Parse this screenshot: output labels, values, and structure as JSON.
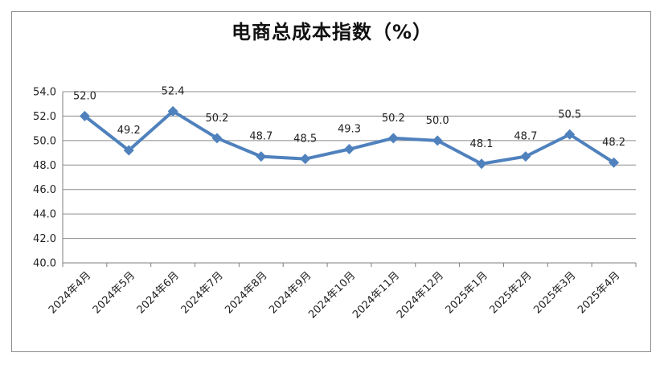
{
  "chart_data": {
    "type": "line",
    "title": "电商总成本指数（%）",
    "xlabel": "",
    "ylabel": "",
    "categories": [
      "2024年4月",
      "2024年5月",
      "2024年6月",
      "2024年7月",
      "2024年8月",
      "2024年9月",
      "2024年10月",
      "2024年11月",
      "2024年12月",
      "2025年1月",
      "2025年2月",
      "2025年3月",
      "2025年4月"
    ],
    "series": [
      {
        "values": [
          52.0,
          49.2,
          52.4,
          50.2,
          48.7,
          48.5,
          49.3,
          50.2,
          50.0,
          48.1,
          48.7,
          50.5,
          48.2
        ]
      }
    ],
    "data_labels": [
      "52.0",
      "49.2",
      "52.4",
      "50.2",
      "48.7",
      "48.5",
      "49.3",
      "50.2",
      "50.0",
      "48.1",
      "48.7",
      "50.5",
      "48.2"
    ],
    "ylim": [
      40.0,
      54.0
    ],
    "y_ticks": [
      "40.0",
      "42.0",
      "44.0",
      "46.0",
      "48.0",
      "50.0",
      "52.0",
      "54.0"
    ],
    "grid": "horizontal",
    "legend": "none",
    "colors": {
      "line": "#4f81bd",
      "grid": "#8c8c8c",
      "axis": "#7f7f7f"
    }
  }
}
